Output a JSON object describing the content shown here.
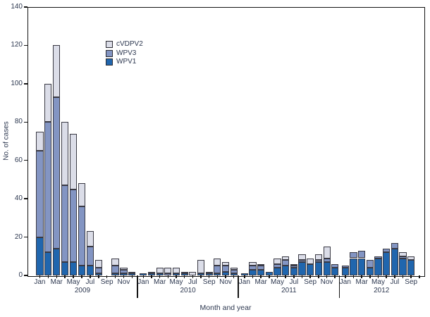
{
  "chart_data": {
    "type": "bar",
    "stacked": true,
    "title": "",
    "xlabel": "Month and year",
    "ylabel": "No. of cases",
    "ylim": [
      0,
      140
    ],
    "yticks": [
      0,
      20,
      40,
      60,
      80,
      100,
      120,
      140
    ],
    "grid": false,
    "legend_position": "upper-left-inside",
    "legend": [
      {
        "label": "cVDPV2",
        "color": "#dbdde8"
      },
      {
        "label": "WPV3",
        "color": "#8395c3"
      },
      {
        "label": "WPV1",
        "color": "#2066ae"
      }
    ],
    "stack_order": [
      "WPV1",
      "WPV3",
      "cVDPV2"
    ],
    "segment_border_color": "#3a3a44",
    "axis_color": "#141414",
    "text_color": "#2d3850",
    "years": [
      {
        "label": "2009",
        "months": [
          "Jan",
          "Feb",
          "Mar",
          "Apr",
          "May",
          "Jun",
          "Jul",
          "Aug",
          "Sep",
          "Oct",
          "Nov",
          "Dec"
        ],
        "values": {
          "WPV1": [
            20,
            12,
            14,
            7,
            7,
            5,
            5,
            1,
            0,
            1,
            1,
            1
          ],
          "WPV3": [
            45,
            68,
            79,
            40,
            38,
            31,
            10,
            3,
            0,
            4,
            2,
            0
          ],
          "cVDPV2": [
            10,
            20,
            27,
            33,
            29,
            12,
            8,
            4,
            0,
            4,
            1,
            1
          ]
        }
      },
      {
        "label": "2010",
        "months": [
          "Jan",
          "Feb",
          "Mar",
          "Apr",
          "May",
          "Jun",
          "Jul",
          "Aug",
          "Sep",
          "Oct",
          "Nov",
          "Dec"
        ],
        "values": {
          "WPV1": [
            1,
            1,
            1,
            0,
            1,
            1,
            0,
            1,
            1,
            1,
            2,
            1
          ],
          "WPV3": [
            0,
            0,
            0,
            1,
            0,
            0,
            0,
            0,
            1,
            4,
            3,
            2
          ],
          "cVDPV2": [
            0,
            1,
            3,
            3,
            3,
            1,
            2,
            7,
            0,
            4,
            2,
            1
          ]
        }
      },
      {
        "label": "2011",
        "months": [
          "Jan",
          "Feb",
          "Mar",
          "Apr",
          "May",
          "Jun",
          "Jul",
          "Aug",
          "Sep",
          "Oct",
          "Nov",
          "Dec"
        ],
        "values": {
          "WPV1": [
            1,
            3,
            3,
            2,
            4,
            5,
            4,
            7,
            6,
            7,
            7,
            4
          ],
          "WPV3": [
            0,
            2,
            2,
            0,
            2,
            3,
            1,
            1,
            0,
            1,
            2,
            2
          ],
          "cVDPV2": [
            0,
            2,
            1,
            0,
            3,
            2,
            1,
            3,
            3,
            3,
            6,
            0
          ]
        }
      },
      {
        "label": "2012",
        "months": [
          "Jan",
          "Feb",
          "Mar",
          "Apr",
          "May",
          "Jun",
          "Jul",
          "Aug",
          "Sep",
          "Oct"
        ],
        "values": {
          "WPV1": [
            4,
            9,
            9,
            4,
            9,
            12,
            14,
            9,
            8,
            0
          ],
          "WPV3": [
            1,
            3,
            4,
            4,
            1,
            2,
            3,
            1,
            0,
            0
          ],
          "cVDPV2": [
            0,
            0,
            0,
            0,
            0,
            0,
            0,
            2,
            2,
            0
          ]
        }
      }
    ]
  }
}
